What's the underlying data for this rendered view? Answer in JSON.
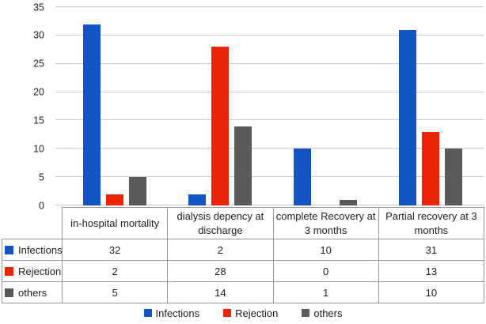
{
  "figure": {
    "background": "#FFFFFF"
  },
  "chart_data": {
    "type": "bar",
    "title": "",
    "xlabel": "",
    "ylabel": "",
    "categories": [
      "in-hospital mortality",
      "dialysis depency at discharge",
      "complete Recovery at 3 months",
      "Partial recovery at 3 months"
    ],
    "series": [
      {
        "name": "Infections",
        "color": "#1353C4",
        "values": [
          32,
          2,
          10,
          31
        ]
      },
      {
        "name": "Rejection",
        "color": "#EE2409",
        "values": [
          2,
          28,
          0,
          13
        ]
      },
      {
        "name": "others",
        "color": "#5A5A5A",
        "values": [
          5,
          14,
          1,
          10
        ]
      }
    ],
    "ylim": [
      0,
      35
    ],
    "yticks": [
      0,
      5,
      10,
      15,
      20,
      25,
      30,
      35
    ],
    "grid": true,
    "legend_position": "bottom",
    "data_table_visible": true
  },
  "styles": {
    "gridline_color": "#C9C9C9",
    "table_border_color": "#969696",
    "text_color": "#212121"
  }
}
